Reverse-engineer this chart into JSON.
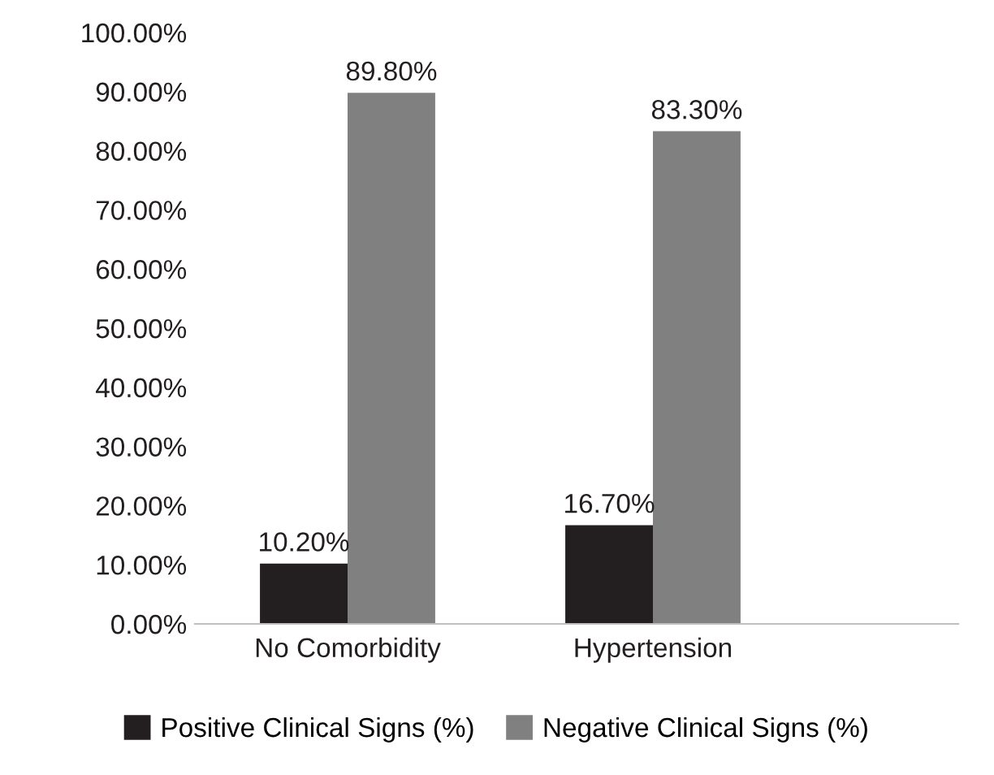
{
  "chart_data": {
    "type": "bar",
    "categories": [
      "No Comorbidity",
      "Hypertension"
    ],
    "series": [
      {
        "name": "Positive Clinical Signs (%)",
        "color": "#231f20",
        "values": [
          10.2,
          16.7
        ],
        "value_labels": [
          "10.20%",
          "16.70%"
        ]
      },
      {
        "name": "Negative Clinical Signs (%)",
        "color": "#808080",
        "values": [
          89.8,
          83.3
        ],
        "value_labels": [
          "89.80%",
          "83.30%"
        ]
      }
    ],
    "ylim": [
      0,
      100
    ],
    "yticks": [
      {
        "value": 0,
        "label": "0.00%"
      },
      {
        "value": 10,
        "label": "10.00%"
      },
      {
        "value": 20,
        "label": "20.00%"
      },
      {
        "value": 30,
        "label": "30.00%"
      },
      {
        "value": 40,
        "label": "40.00%"
      },
      {
        "value": 50,
        "label": "50.00%"
      },
      {
        "value": 60,
        "label": "60.00%"
      },
      {
        "value": 70,
        "label": "70.00%"
      },
      {
        "value": 80,
        "label": "80.00%"
      },
      {
        "value": 90,
        "label": "90.00%"
      },
      {
        "value": 100,
        "label": "100.00%"
      }
    ],
    "grid": false,
    "legend": "bottom"
  }
}
